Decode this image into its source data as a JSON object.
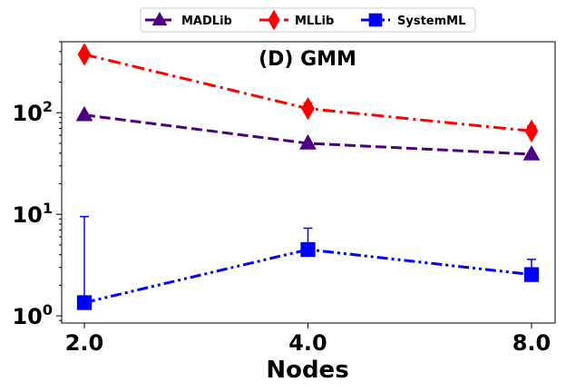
{
  "chart_data": {
    "type": "line",
    "title": "(D) GMM",
    "xlabel": "Nodes",
    "ylabel": "",
    "x": [
      2.0,
      4.0,
      8.0
    ],
    "x_tick_labels": [
      "2.0",
      "4.0",
      "8.0"
    ],
    "y_scale": "log",
    "ylim": [
      0.85,
      500
    ],
    "y_ticks": [
      1,
      10,
      100
    ],
    "y_tick_labels": [
      {
        "base": "10",
        "exp": "0"
      },
      {
        "base": "10",
        "exp": "1"
      },
      {
        "base": "10",
        "exp": "2"
      }
    ],
    "legend": {
      "placement": "top-center, above plot"
    },
    "series": [
      {
        "name": "MADLib",
        "values": [
          95,
          50,
          39
        ],
        "color": "#4b0082",
        "marker": "triangle",
        "linestyle": "dashed"
      },
      {
        "name": "MLLib",
        "values": [
          375,
          110,
          66
        ],
        "color": "#ff0000",
        "marker": "diamond",
        "linestyle": "dashdot",
        "error": [
          25,
          15,
          8
        ]
      },
      {
        "name": "SystemML",
        "values": [
          1.35,
          4.5,
          2.55
        ],
        "color": "#0000ff",
        "marker": "square",
        "linestyle": "dashdotdot",
        "error_upper": [
          9.5,
          7.3,
          3.6
        ],
        "error_lower": [
          1.35,
          4.5,
          2.55
        ]
      }
    ]
  }
}
